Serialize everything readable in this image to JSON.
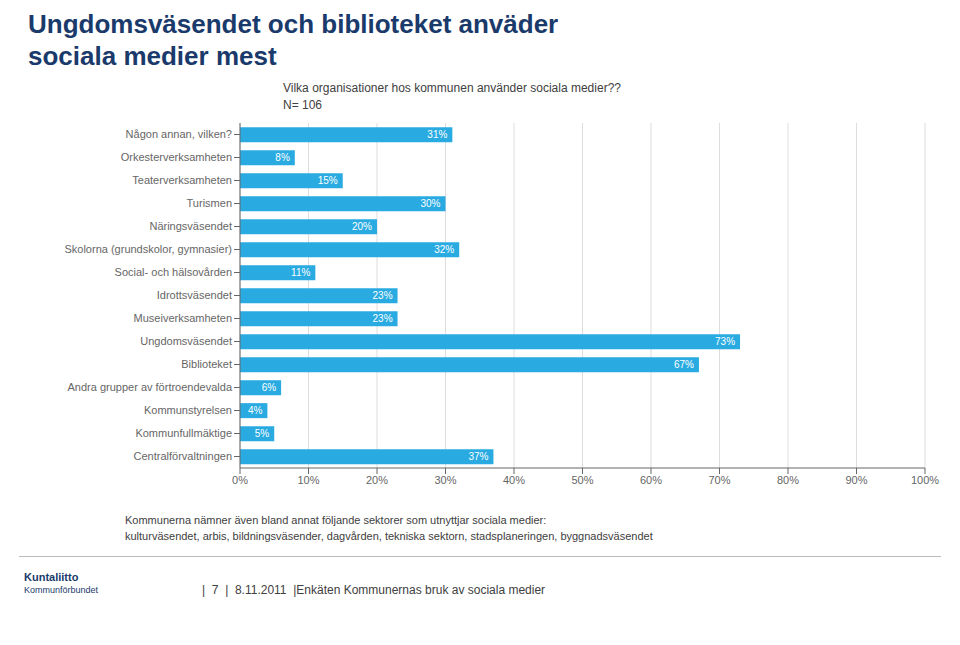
{
  "chart_data": {
    "type": "bar",
    "orientation": "horizontal",
    "title": "Ungdomsväsendet och biblioteket anväder\nsociala medier mest",
    "subtitle": "Vilka organisationer hos kommunen använder sociala medier??\nN= 106",
    "categories": [
      "Någon annan, vilken?",
      "Orkesterverksamheten",
      "Teaterverksamheten",
      "Turismen",
      "Näringsväsendet",
      "Skolorna (grundskolor, gymnasier)",
      "Social- och hälsovården",
      "Idrottsväsendet",
      "Museiverksamheten",
      "Ungdomsväsendet",
      "Biblioteket",
      "Andra grupper av förtroendevalda",
      "Kommunstyrelsen",
      "Kommunfullmäktige",
      "Centralförvaltningen"
    ],
    "values": [
      31,
      8,
      15,
      30,
      20,
      32,
      11,
      23,
      23,
      73,
      67,
      6,
      4,
      5,
      37
    ],
    "value_labels": [
      "31%",
      "8%",
      "15%",
      "30%",
      "20%",
      "32%",
      "11%",
      "23%",
      "23%",
      "73%",
      "67%",
      "6%",
      "4%",
      "5%",
      "37%"
    ],
    "data_labels": true,
    "color": "#29ABE2",
    "xlim": [
      0,
      100
    ],
    "xticks": [
      {
        "value": 0,
        "label": "0%"
      },
      {
        "value": 10,
        "label": "10%"
      },
      {
        "value": 20,
        "label": "20%"
      },
      {
        "value": 30,
        "label": "30%"
      },
      {
        "value": 40,
        "label": "40%"
      },
      {
        "value": 50,
        "label": "50%"
      },
      {
        "value": 60,
        "label": "60%"
      },
      {
        "value": 70,
        "label": "70%"
      },
      {
        "value": 80,
        "label": "80%"
      },
      {
        "value": 90,
        "label": "90%"
      },
      {
        "value": 100,
        "label": "100%"
      }
    ],
    "grid": true,
    "annotations": [
      "Kommunerna nämner även bland annat följande sektorer som utnyttjar sociala medier:",
      "kulturväsendet, arbis, bildningsväsender, dagvården, tekniska sektorn, stadsplaneringen,  byggnadsväsendet",
      "|  7  |  8.11.2011  |Enkäten Kommunernas bruk av sociala medier",
      "Kuntaliitto",
      "Kommunförbundet"
    ]
  }
}
